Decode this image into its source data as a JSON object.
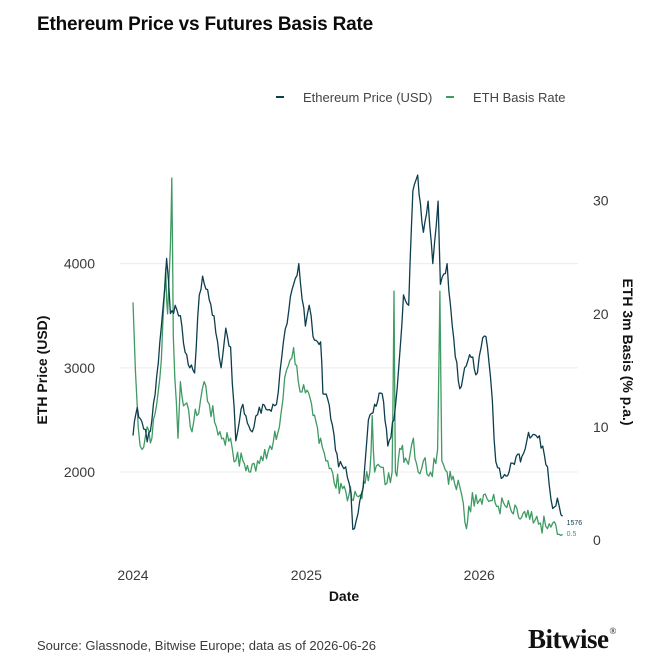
{
  "header": {
    "title": "Ethereum Price vs Futures Basis Rate"
  },
  "footer": {
    "source": "Source: Glassnode, Bitwise Europe; data as of 2026-06-26",
    "brand": "Bitwise"
  },
  "colors": {
    "price": "#0d3e4e",
    "basis": "#3f9a63",
    "grid": "#ececec",
    "text": "#3a3a3a"
  },
  "chart_data": {
    "type": "line",
    "title": "Ethereum Price vs Futures Basis Rate",
    "xlabel": "Date",
    "ylabel_left": "ETH Price (USD)",
    "ylabel_right": "ETH 3m Basis (% p.a.)",
    "x_ticks": [
      "2024",
      "2025",
      "2026"
    ],
    "x_tick_dates": [
      "2024-01-01",
      "2025-01-01",
      "2026-01-01"
    ],
    "y_left_ticks": [
      2000,
      3000,
      4000
    ],
    "y_right_ticks": [
      0,
      10,
      20,
      30
    ],
    "y_left_range": [
      1300,
      4850
    ],
    "y_right_range": [
      0,
      32
    ],
    "x_range": [
      "2024-01-01",
      "2026-07-01"
    ],
    "grid": true,
    "legend_position": "top-right",
    "series": [
      {
        "name": "Ethereum Price (USD)",
        "axis": "left",
        "color": "#0d3e4e",
        "end_label": "1576",
        "points": [
          [
            "2024-01-01",
            2350
          ],
          [
            "2024-01-10",
            2620
          ],
          [
            "2024-01-20",
            2480
          ],
          [
            "2024-01-31",
            2290
          ],
          [
            "2024-02-10",
            2500
          ],
          [
            "2024-02-20",
            2920
          ],
          [
            "2024-03-01",
            3400
          ],
          [
            "2024-03-12",
            4050
          ],
          [
            "2024-03-20",
            3520
          ],
          [
            "2024-03-30",
            3600
          ],
          [
            "2024-04-10",
            3500
          ],
          [
            "2024-04-20",
            3150
          ],
          [
            "2024-04-30",
            3000
          ],
          [
            "2024-05-10",
            2950
          ],
          [
            "2024-05-20",
            3700
          ],
          [
            "2024-05-27",
            3880
          ],
          [
            "2024-06-10",
            3650
          ],
          [
            "2024-06-20",
            3500
          ],
          [
            "2024-07-05",
            3000
          ],
          [
            "2024-07-15",
            3380
          ],
          [
            "2024-07-25",
            3200
          ],
          [
            "2024-08-05",
            2300
          ],
          [
            "2024-08-20",
            2650
          ],
          [
            "2024-09-05",
            2400
          ],
          [
            "2024-09-20",
            2550
          ],
          [
            "2024-10-01",
            2650
          ],
          [
            "2024-10-15",
            2600
          ],
          [
            "2024-10-30",
            2650
          ],
          [
            "2024-11-10",
            3100
          ],
          [
            "2024-11-25",
            3550
          ],
          [
            "2024-12-05",
            3800
          ],
          [
            "2024-12-16",
            4000
          ],
          [
            "2024-12-30",
            3400
          ],
          [
            "2025-01-07",
            3600
          ],
          [
            "2025-01-15",
            3300
          ],
          [
            "2025-01-31",
            3250
          ],
          [
            "2025-02-05",
            2750
          ],
          [
            "2025-02-15",
            2700
          ],
          [
            "2025-02-25",
            2450
          ],
          [
            "2025-03-10",
            2050
          ],
          [
            "2025-03-25",
            2050
          ],
          [
            "2025-04-05",
            1800
          ],
          [
            "2025-04-09",
            1450
          ],
          [
            "2025-04-20",
            1600
          ],
          [
            "2025-05-01",
            1850
          ],
          [
            "2025-05-12",
            2500
          ],
          [
            "2025-05-25",
            2650
          ],
          [
            "2025-06-10",
            2750
          ],
          [
            "2025-06-22",
            2250
          ],
          [
            "2025-07-05",
            2500
          ],
          [
            "2025-07-15",
            3000
          ],
          [
            "2025-07-25",
            3700
          ],
          [
            "2025-08-05",
            3600
          ],
          [
            "2025-08-14",
            4700
          ],
          [
            "2025-08-24",
            4850
          ],
          [
            "2025-09-05",
            4300
          ],
          [
            "2025-09-15",
            4600
          ],
          [
            "2025-09-25",
            4000
          ],
          [
            "2025-10-06",
            4600
          ],
          [
            "2025-10-11",
            3800
          ],
          [
            "2025-10-25",
            4000
          ],
          [
            "2025-11-05",
            3400
          ],
          [
            "2025-11-21",
            2800
          ],
          [
            "2025-12-01",
            3000
          ],
          [
            "2025-12-15",
            3100
          ],
          [
            "2025-12-28",
            2950
          ],
          [
            "2026-01-05",
            3200
          ],
          [
            "2026-01-15",
            3300
          ],
          [
            "2026-01-25",
            2900
          ],
          [
            "2026-02-05",
            2100
          ],
          [
            "2026-02-20",
            1950
          ],
          [
            "2026-03-05",
            2000
          ],
          [
            "2026-03-20",
            2150
          ],
          [
            "2026-04-01",
            2150
          ],
          [
            "2026-04-15",
            2380
          ],
          [
            "2026-05-01",
            2350
          ],
          [
            "2026-05-15",
            2250
          ],
          [
            "2026-05-25",
            2050
          ],
          [
            "2026-06-05",
            1650
          ],
          [
            "2026-06-15",
            1750
          ],
          [
            "2026-06-26",
            1576
          ]
        ]
      },
      {
        "name": "ETH Basis Rate",
        "axis": "right",
        "color": "#3f9a63",
        "end_label": "0.5",
        "points": [
          [
            "2024-01-01",
            21
          ],
          [
            "2024-01-06",
            15
          ],
          [
            "2024-01-12",
            10
          ],
          [
            "2024-01-20",
            8
          ],
          [
            "2024-01-31",
            10
          ],
          [
            "2024-02-10",
            9
          ],
          [
            "2024-02-20",
            12
          ],
          [
            "2024-03-01",
            16
          ],
          [
            "2024-03-10",
            24
          ],
          [
            "2024-03-14",
            20
          ],
          [
            "2024-03-20",
            26
          ],
          [
            "2024-03-23",
            32
          ],
          [
            "2024-03-26",
            18
          ],
          [
            "2024-04-05",
            9
          ],
          [
            "2024-04-10",
            14
          ],
          [
            "2024-04-20",
            12
          ],
          [
            "2024-05-01",
            10
          ],
          [
            "2024-05-15",
            11
          ],
          [
            "2024-05-30",
            14
          ],
          [
            "2024-06-10",
            12
          ],
          [
            "2024-06-25",
            10
          ],
          [
            "2024-07-10",
            9
          ],
          [
            "2024-07-25",
            9
          ],
          [
            "2024-08-05",
            7
          ],
          [
            "2024-08-20",
            7
          ],
          [
            "2024-09-05",
            6
          ],
          [
            "2024-09-20",
            7
          ],
          [
            "2024-10-05",
            8
          ],
          [
            "2024-10-20",
            8
          ],
          [
            "2024-11-05",
            10
          ],
          [
            "2024-11-20",
            15
          ],
          [
            "2024-12-05",
            17
          ],
          [
            "2024-12-15",
            14
          ],
          [
            "2024-12-30",
            13
          ],
          [
            "2025-01-15",
            11
          ],
          [
            "2025-01-31",
            9
          ],
          [
            "2025-02-15",
            7
          ],
          [
            "2025-03-01",
            5
          ],
          [
            "2025-03-15",
            5
          ],
          [
            "2025-04-01",
            4
          ],
          [
            "2025-04-10",
            3.5
          ],
          [
            "2025-04-25",
            4
          ],
          [
            "2025-05-05",
            5
          ],
          [
            "2025-05-15",
            6
          ],
          [
            "2025-05-20",
            11
          ],
          [
            "2025-05-25",
            6
          ],
          [
            "2025-06-05",
            6.5
          ],
          [
            "2025-06-20",
            5
          ],
          [
            "2025-07-01",
            6
          ],
          [
            "2025-07-05",
            22
          ],
          [
            "2025-07-08",
            6
          ],
          [
            "2025-07-20",
            8
          ],
          [
            "2025-08-01",
            7
          ],
          [
            "2025-08-15",
            9
          ],
          [
            "2025-08-25",
            6
          ],
          [
            "2025-09-05",
            7
          ],
          [
            "2025-09-20",
            6
          ],
          [
            "2025-10-05",
            8
          ],
          [
            "2025-10-10",
            22
          ],
          [
            "2025-10-14",
            7
          ],
          [
            "2025-10-25",
            6
          ],
          [
            "2025-11-10",
            5
          ],
          [
            "2025-11-25",
            4
          ],
          [
            "2025-12-05",
            1
          ],
          [
            "2025-12-10",
            3
          ],
          [
            "2025-12-25",
            4
          ],
          [
            "2026-01-10",
            4
          ],
          [
            "2026-01-25",
            3.5
          ],
          [
            "2026-02-10",
            3
          ],
          [
            "2026-02-25",
            3
          ],
          [
            "2026-03-10",
            2.5
          ],
          [
            "2026-03-25",
            2
          ],
          [
            "2026-04-10",
            2
          ],
          [
            "2026-04-25",
            1.5
          ],
          [
            "2026-05-10",
            1.5
          ],
          [
            "2026-05-25",
            1
          ],
          [
            "2026-06-05",
            1.5
          ],
          [
            "2026-06-15",
            0.5
          ],
          [
            "2026-06-26",
            0.5
          ]
        ]
      }
    ]
  }
}
